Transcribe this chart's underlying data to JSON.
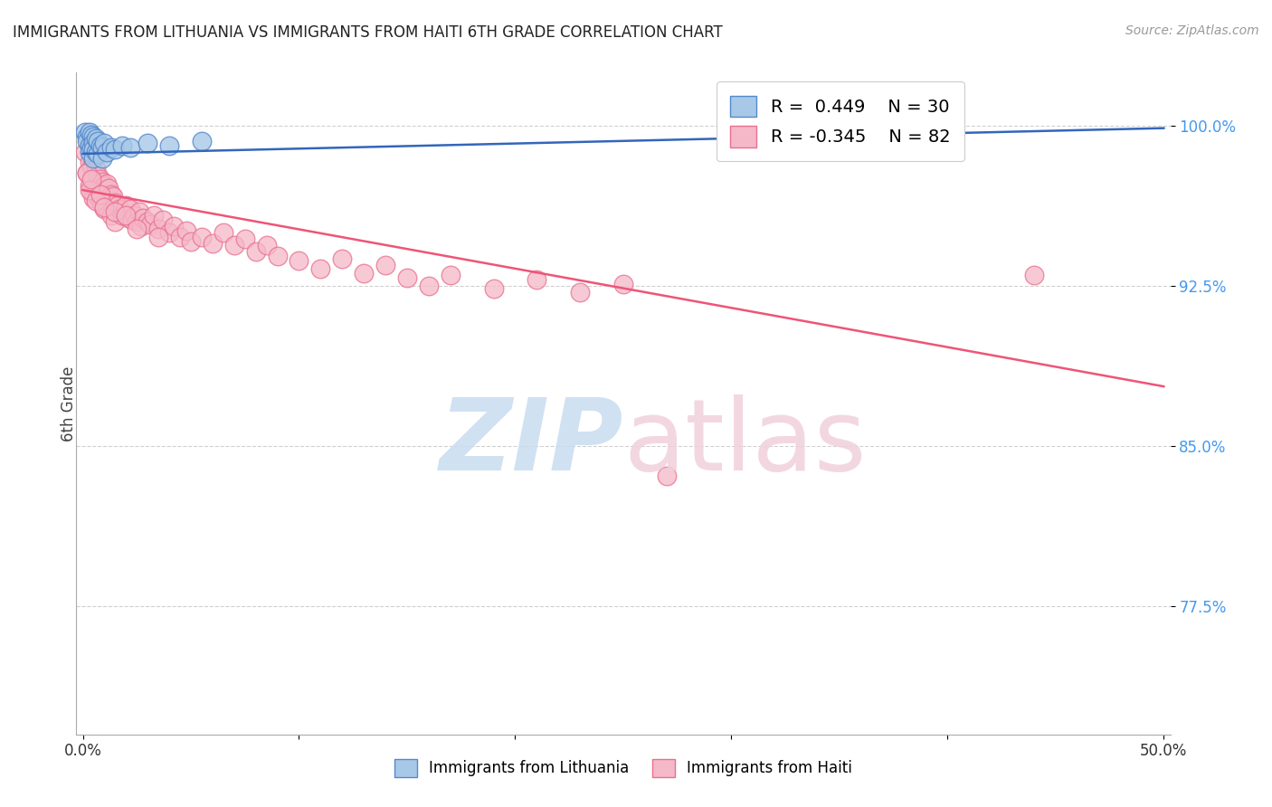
{
  "title": "IMMIGRANTS FROM LITHUANIA VS IMMIGRANTS FROM HAITI 6TH GRADE CORRELATION CHART",
  "source": "Source: ZipAtlas.com",
  "ylabel": "6th Grade",
  "ytick_values": [
    1.0,
    0.925,
    0.85,
    0.775
  ],
  "ymin": 0.715,
  "ymax": 1.025,
  "xmin": -0.003,
  "xmax": 0.503,
  "legend_r_lithuania": "R =  0.449",
  "legend_n_lithuania": "N = 30",
  "legend_r_haiti": "R = -0.345",
  "legend_n_haiti": "N = 82",
  "color_lithuania_fill": "#A8C8E8",
  "color_lithuania_edge": "#5588CC",
  "color_haiti_fill": "#F5B8C8",
  "color_haiti_edge": "#E87090",
  "color_trendline_lithuania": "#3366BB",
  "color_trendline_haiti": "#EE5577",
  "color_ytick_labels": "#4499EE",
  "background_color": "#FFFFFF",
  "watermark_zip_color": "#C8DCF0",
  "watermark_atlas_color": "#F0D0DC",
  "lithuania_x": [
    0.001,
    0.002,
    0.002,
    0.003,
    0.003,
    0.003,
    0.004,
    0.004,
    0.005,
    0.005,
    0.005,
    0.005,
    0.006,
    0.006,
    0.007,
    0.007,
    0.008,
    0.009,
    0.009,
    0.01,
    0.011,
    0.013,
    0.015,
    0.018,
    0.022,
    0.03,
    0.04,
    0.055,
    0.3,
    0.37
  ],
  "lithuania_y": [
    0.997,
    0.995,
    0.993,
    0.997,
    0.991,
    0.988,
    0.996,
    0.99,
    0.995,
    0.992,
    0.989,
    0.985,
    0.994,
    0.988,
    0.993,
    0.987,
    0.991,
    0.99,
    0.985,
    0.992,
    0.988,
    0.99,
    0.989,
    0.991,
    0.99,
    0.992,
    0.991,
    0.993,
    0.998,
    0.995
  ],
  "haiti_x": [
    0.001,
    0.002,
    0.003,
    0.003,
    0.004,
    0.004,
    0.005,
    0.005,
    0.005,
    0.006,
    0.006,
    0.007,
    0.007,
    0.008,
    0.008,
    0.009,
    0.009,
    0.01,
    0.01,
    0.011,
    0.011,
    0.012,
    0.013,
    0.013,
    0.014,
    0.015,
    0.015,
    0.016,
    0.017,
    0.018,
    0.019,
    0.02,
    0.021,
    0.022,
    0.023,
    0.024,
    0.025,
    0.026,
    0.027,
    0.028,
    0.03,
    0.031,
    0.033,
    0.035,
    0.037,
    0.04,
    0.042,
    0.045,
    0.048,
    0.05,
    0.055,
    0.06,
    0.065,
    0.07,
    0.075,
    0.08,
    0.085,
    0.09,
    0.1,
    0.11,
    0.12,
    0.13,
    0.14,
    0.15,
    0.16,
    0.17,
    0.19,
    0.21,
    0.23,
    0.25,
    0.002,
    0.003,
    0.004,
    0.006,
    0.008,
    0.01,
    0.015,
    0.02,
    0.025,
    0.035,
    0.27,
    0.44
  ],
  "haiti_y": [
    0.988,
    0.978,
    0.983,
    0.972,
    0.981,
    0.969,
    0.984,
    0.975,
    0.966,
    0.98,
    0.971,
    0.977,
    0.967,
    0.975,
    0.965,
    0.974,
    0.963,
    0.972,
    0.961,
    0.973,
    0.962,
    0.971,
    0.968,
    0.958,
    0.967,
    0.964,
    0.955,
    0.963,
    0.961,
    0.958,
    0.959,
    0.963,
    0.957,
    0.961,
    0.956,
    0.958,
    0.955,
    0.96,
    0.953,
    0.957,
    0.955,
    0.954,
    0.958,
    0.952,
    0.956,
    0.95,
    0.953,
    0.948,
    0.951,
    0.946,
    0.948,
    0.945,
    0.95,
    0.944,
    0.947,
    0.941,
    0.944,
    0.939,
    0.937,
    0.933,
    0.938,
    0.931,
    0.935,
    0.929,
    0.925,
    0.93,
    0.924,
    0.928,
    0.922,
    0.926,
    0.978,
    0.97,
    0.975,
    0.965,
    0.968,
    0.962,
    0.96,
    0.958,
    0.952,
    0.948,
    0.836,
    0.93
  ],
  "trendline_lith_x0": 0.0,
  "trendline_lith_y0": 0.987,
  "trendline_lith_x1": 0.5,
  "trendline_lith_y1": 0.999,
  "trendline_haiti_x0": 0.0,
  "trendline_haiti_y0": 0.97,
  "trendline_haiti_x1": 0.5,
  "trendline_haiti_y1": 0.878
}
